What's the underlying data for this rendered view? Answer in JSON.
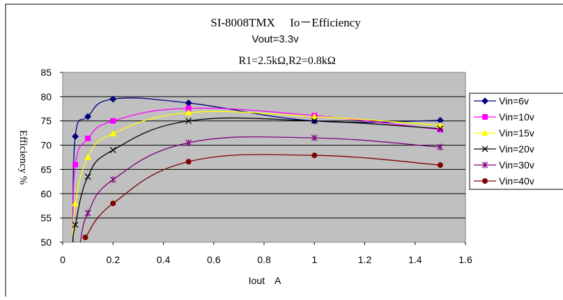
{
  "chart_data": {
    "type": "line",
    "title_lines": [
      "SI-8008TMX　 Io－Efficiency",
      "Vout=3.3v",
      "R1=2.5kΩ,R2=0.8kΩ"
    ],
    "xlabel": "Iout　A",
    "ylabel": "Efficiency %",
    "xlim": [
      0,
      1.6
    ],
    "ylim": [
      50,
      85
    ],
    "x_ticks": [
      "0",
      "0.2",
      "0.4",
      "0.6",
      "0.8",
      "1",
      "1.2",
      "1.4",
      "1.6"
    ],
    "y_ticks": [
      "50",
      "55",
      "60",
      "65",
      "70",
      "75",
      "80",
      "85"
    ],
    "grid": "horizontal",
    "plot_background": "#c0c0c0",
    "legend_position": "right",
    "series": [
      {
        "name": "Vin=6v",
        "color": "#000080",
        "marker": "diamond",
        "x": [
          0.04,
          0.05,
          0.1,
          0.2,
          0.5,
          1.0,
          1.5
        ],
        "y": [
          50,
          71.8,
          75.9,
          79.5,
          78.7,
          75.0,
          75.1
        ]
      },
      {
        "name": "Vin=10v",
        "color": "#ff00ff",
        "marker": "square",
        "x": [
          0.04,
          0.05,
          0.1,
          0.2,
          0.5,
          1.0,
          1.5
        ],
        "y": [
          50,
          66.0,
          71.4,
          75.0,
          77.6,
          76.1,
          73.2
        ]
      },
      {
        "name": "Vin=15v",
        "color": "#ffff00",
        "marker": "triangle",
        "x": [
          0.04,
          0.05,
          0.1,
          0.2,
          0.5,
          1.0,
          1.5
        ],
        "y": [
          50,
          58.0,
          67.5,
          72.4,
          76.7,
          75.9,
          74.1
        ]
      },
      {
        "name": "Vin=20v",
        "color": "#000000",
        "marker": "x",
        "x": [
          0.04,
          0.05,
          0.1,
          0.2,
          0.5,
          1.0,
          1.5
        ],
        "y": [
          50,
          53.6,
          63.5,
          69.0,
          75.0,
          75.0,
          73.4
        ]
      },
      {
        "name": "Vin=30v",
        "color": "#800080",
        "marker": "asterisk",
        "x": [
          0.07,
          0.1,
          0.2,
          0.5,
          1.0,
          1.5
        ],
        "y": [
          50,
          56.0,
          62.9,
          70.5,
          71.5,
          69.6
        ]
      },
      {
        "name": "Vin=40v",
        "color": "#800000",
        "marker": "circle",
        "x": [
          0.09,
          0.2,
          0.5,
          1.0,
          1.5
        ],
        "y": [
          51.0,
          58.0,
          66.6,
          67.9,
          65.9
        ]
      }
    ]
  }
}
